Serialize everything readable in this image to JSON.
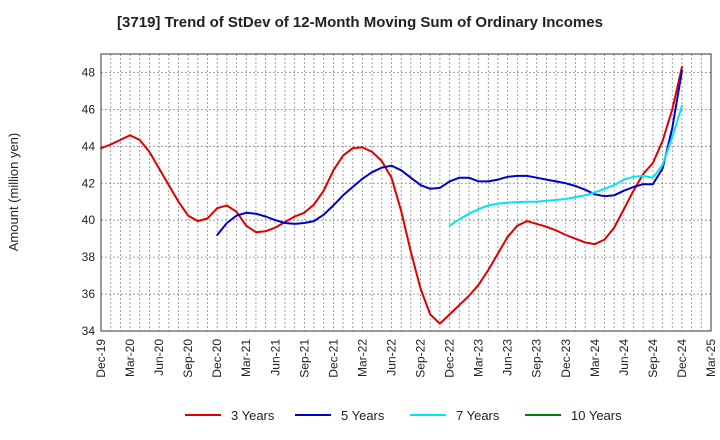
{
  "chart_data": {
    "type": "line",
    "title": "[3719]  Trend of StDev of 12-Month Moving Sum of Ordinary Incomes",
    "xlabel": "",
    "ylabel": "Amount (million yen)",
    "ylim": [
      34,
      49
    ],
    "yticks": [
      34,
      36,
      38,
      40,
      42,
      44,
      46,
      48
    ],
    "grid": true,
    "legend_position": "bottom",
    "x_start": "Dec-19",
    "x_ticks": [
      "Dec-19",
      "Mar-20",
      "Jun-20",
      "Sep-20",
      "Dec-20",
      "Mar-21",
      "Jun-21",
      "Sep-21",
      "Dec-21",
      "Mar-22",
      "Jun-22",
      "Sep-22",
      "Dec-22",
      "Mar-23",
      "Jun-23",
      "Sep-23",
      "Dec-23",
      "Mar-24",
      "Jun-24",
      "Sep-24",
      "Dec-24",
      "Mar-25"
    ],
    "series": [
      {
        "name": "3 Years",
        "color": "#dd0000",
        "start_month_index": 0,
        "values": [
          43.9,
          44.1,
          44.35,
          44.6,
          44.35,
          43.7,
          42.8,
          41.9,
          41.0,
          40.25,
          39.95,
          40.1,
          40.65,
          40.8,
          40.45,
          39.7,
          39.35,
          39.4,
          39.6,
          39.9,
          40.2,
          40.4,
          40.85,
          41.6,
          42.7,
          43.5,
          43.9,
          43.95,
          43.7,
          43.2,
          42.3,
          40.5,
          38.3,
          36.3,
          34.9,
          34.4,
          34.9,
          35.4,
          35.9,
          36.5,
          37.3,
          38.2,
          39.1,
          39.7,
          39.95,
          39.8,
          39.65,
          39.45,
          39.2,
          39.0,
          38.8,
          38.7,
          38.95,
          39.6,
          40.6,
          41.6,
          42.5,
          43.1,
          44.3,
          46.0,
          48.3
        ]
      },
      {
        "name": "5 Years",
        "color": "#0000cc",
        "start_month_index": 12,
        "values": [
          39.2,
          39.85,
          40.25,
          40.4,
          40.35,
          40.2,
          40.0,
          39.85,
          39.8,
          39.85,
          39.95,
          40.3,
          40.8,
          41.35,
          41.8,
          42.25,
          42.6,
          42.85,
          42.95,
          42.7,
          42.3,
          41.9,
          41.7,
          41.75,
          42.1,
          42.3,
          42.3,
          42.1,
          42.1,
          42.2,
          42.35,
          42.4,
          42.4,
          42.3,
          42.2,
          42.1,
          42.0,
          41.85,
          41.65,
          41.4,
          41.3,
          41.35,
          41.6,
          41.8,
          41.95,
          41.95,
          42.8,
          45.0,
          48.1
        ]
      },
      {
        "name": "7 Years",
        "color": "#00e5ee",
        "start_month_index": 36,
        "values": [
          39.7,
          40.05,
          40.35,
          40.6,
          40.8,
          40.9,
          40.95,
          40.98,
          41.0,
          41.0,
          41.05,
          41.1,
          41.15,
          41.25,
          41.35,
          41.5,
          41.7,
          41.9,
          42.2,
          42.35,
          42.4,
          42.3,
          43.0,
          44.5,
          46.2
        ]
      },
      {
        "name": "10 Years",
        "color": "#008000",
        "start_month_index": 0,
        "values": []
      }
    ]
  }
}
